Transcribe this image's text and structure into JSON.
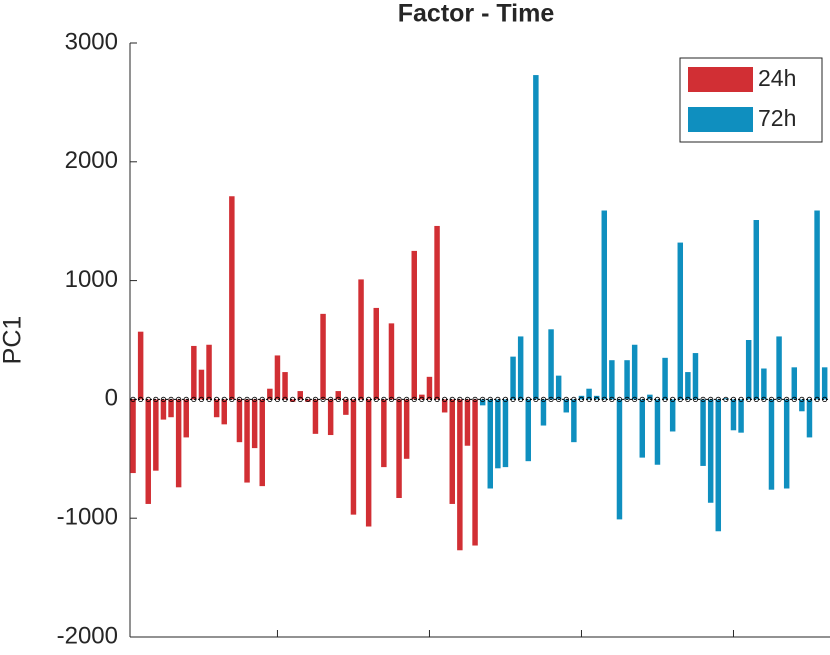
{
  "chart_data": {
    "type": "bar",
    "title": "Factor - Time",
    "y_label": "PC1",
    "series": [
      {
        "name": "24h",
        "color": "#d12f34",
        "values": [
          -620,
          570,
          -880,
          -600,
          -170,
          -150,
          -740,
          -320,
          450,
          250,
          460,
          -150,
          -210,
          1710,
          -360,
          -700,
          -410,
          -730,
          90,
          370,
          230,
          -20,
          70,
          -20,
          -290,
          720,
          -300,
          70,
          -130,
          -970,
          1010,
          -1070,
          770,
          -570,
          640,
          -830,
          -500,
          1250,
          40,
          190,
          1460,
          -110,
          -880,
          -1270,
          -390,
          -1230
        ]
      },
      {
        "name": "72h",
        "color": "#0f8fbf",
        "values": [
          -50,
          -750,
          -580,
          -570,
          360,
          530,
          -520,
          2730,
          -220,
          590,
          200,
          -110,
          -360,
          30,
          90,
          30,
          1590,
          330,
          -1010,
          330,
          460,
          -490,
          40,
          -550,
          350,
          -270,
          1320,
          230,
          390,
          -560,
          -870,
          -1110,
          10,
          -260,
          -280,
          500,
          1510,
          260,
          -760,
          530,
          -750,
          270,
          -100,
          -320,
          1590,
          270
        ]
      }
    ],
    "xlim": [
      0.6,
      92.7
    ],
    "xticks": [
      20,
      40,
      60,
      80
    ],
    "ylim": [
      -2000,
      3000
    ],
    "yticks": [
      -2000,
      -1000,
      0,
      1000,
      2000,
      3000
    ],
    "legend": "upper right"
  }
}
